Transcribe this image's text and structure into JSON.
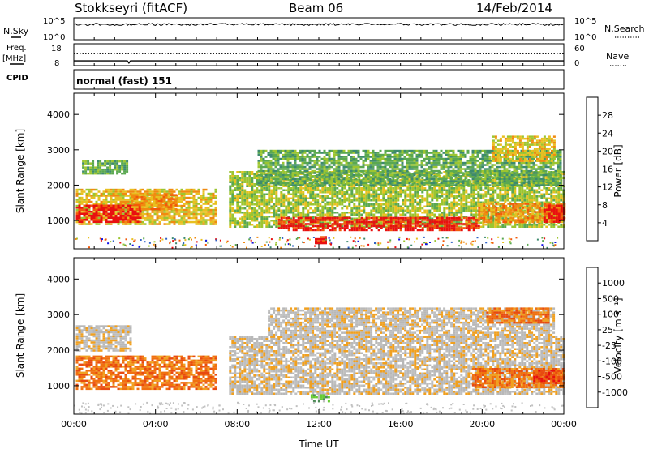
{
  "header": {
    "station": "Stokkseyri (fitACF)",
    "beam": "Beam 06",
    "date": "14/Feb/2014"
  },
  "colors": {
    "power": [
      "#1010e8",
      "#2f62c6",
      "#3d8a6e",
      "#5aa850",
      "#9cc530",
      "#e8c020",
      "#f08a10",
      "#f25a0a",
      "#e81010"
    ],
    "velocity": [
      "#2121c8",
      "#3b66b8",
      "#4a8a55",
      "#66cc33",
      "#c0c0c0",
      "#b8b8b8",
      "#f0a020",
      "#f07010",
      "#e84a10",
      "#e81010"
    ],
    "ground_scatter": "#bebebe"
  },
  "chart_data": [
    {
      "type": "line",
      "panel": "noise",
      "left_label": "N.Sky",
      "right_label": "N.Search",
      "ylim": [
        0,
        5
      ],
      "left_ticks": [
        "10^5",
        "10^0"
      ],
      "right_ticks": [
        "10^5",
        "10^0"
      ]
    },
    {
      "type": "line",
      "panel": "frequency",
      "left_label": "Freq.",
      "left_unit": "[MHz]",
      "right_label": "Nave",
      "left_ticks": [
        18,
        8
      ],
      "right_ticks": [
        60,
        0
      ],
      "series": [
        {
          "name": "Freq.",
          "style": "solid",
          "value_mhz": 10.2,
          "dip": {
            "hour": 2.7,
            "value_mhz": 9.2
          }
        },
        {
          "name": "Nave",
          "style": "dotted",
          "value": 33
        }
      ]
    },
    {
      "type": "table",
      "panel": "cpid",
      "left_label": "CPID",
      "mode_text": "normal (fast) 151"
    },
    {
      "type": "heatmap",
      "panel": "power",
      "ylabel": "Slant Range [km]",
      "xlim_hours": [
        0,
        24
      ],
      "ylim_km": [
        200,
        4600
      ],
      "yticks": [
        1000,
        2000,
        3000,
        4000
      ],
      "colorbar": {
        "label": "Power [dB]",
        "range": [
          0,
          32
        ],
        "ticks": [
          4,
          8,
          12,
          16,
          20,
          24,
          28
        ]
      },
      "regions": [
        {
          "t0": 0.1,
          "t1": 6.9,
          "r0": 900,
          "r1": 1900,
          "level": 5
        },
        {
          "t0": 0.1,
          "t1": 3.2,
          "r0": 950,
          "r1": 1450,
          "level": 8
        },
        {
          "t0": 2.8,
          "t1": 5.0,
          "r0": 1300,
          "r1": 1750,
          "level": 6
        },
        {
          "t0": 0.4,
          "t1": 2.6,
          "r0": 2300,
          "r1": 2700,
          "level": 3
        },
        {
          "t0": 7.6,
          "t1": 24.0,
          "r0": 850,
          "r1": 2400,
          "level": 4
        },
        {
          "t0": 10.0,
          "t1": 19.8,
          "r0": 750,
          "r1": 1100,
          "level": 8
        },
        {
          "t0": 19.8,
          "t1": 24.0,
          "r0": 950,
          "r1": 1500,
          "level": 6
        },
        {
          "t0": 23.0,
          "t1": 24.0,
          "r0": 950,
          "r1": 1450,
          "level": 8
        },
        {
          "t0": 9.0,
          "t1": 23.8,
          "r0": 2000,
          "r1": 3000,
          "level": 3
        },
        {
          "t0": 20.5,
          "t1": 23.5,
          "r0": 2700,
          "r1": 3400,
          "level": 5
        },
        {
          "t0": 11.8,
          "t1": 12.3,
          "r0": 380,
          "r1": 560,
          "level": 8
        }
      ]
    },
    {
      "type": "heatmap",
      "panel": "velocity",
      "ylabel": "Slant Range [km]",
      "xlabel": "Time UT",
      "xlim_hours": [
        0,
        24
      ],
      "ylim_km": [
        200,
        4600
      ],
      "xtick_labels": [
        "00:00",
        "04:00",
        "08:00",
        "12:00",
        "16:00",
        "20:00",
        "00:00"
      ],
      "xtick_hours": [
        0,
        4,
        8,
        12,
        16,
        20,
        24
      ],
      "yticks": [
        1000,
        2000,
        3000,
        4000
      ],
      "colorbar": {
        "label": "Velocity [m s⁻¹]",
        "ticks": [
          "1000",
          "500",
          "100",
          "25",
          "-25",
          "-100",
          "-500",
          "-1000"
        ]
      },
      "regions": [
        {
          "t0": 0.1,
          "t1": 6.9,
          "r0": 900,
          "r1": 1850,
          "level": 7
        },
        {
          "t0": 0.1,
          "t1": 2.8,
          "r0": 2000,
          "r1": 2700,
          "level": 5
        },
        {
          "t0": 7.6,
          "t1": 24.0,
          "r0": 750,
          "r1": 2400,
          "level": 5
        },
        {
          "t0": 9.5,
          "t1": 23.5,
          "r0": 2400,
          "r1": 3200,
          "level": 5
        },
        {
          "t0": 19.5,
          "t1": 24.0,
          "r0": 950,
          "r1": 1500,
          "level": 7
        },
        {
          "t0": 22.5,
          "t1": 24.0,
          "r0": 1100,
          "r1": 1450,
          "level": 8
        },
        {
          "t0": 11.6,
          "t1": 12.5,
          "r0": 580,
          "r1": 760,
          "level": 3
        },
        {
          "t0": 20.2,
          "t1": 23.2,
          "r0": 2800,
          "r1": 3200,
          "level": 7
        }
      ]
    }
  ]
}
